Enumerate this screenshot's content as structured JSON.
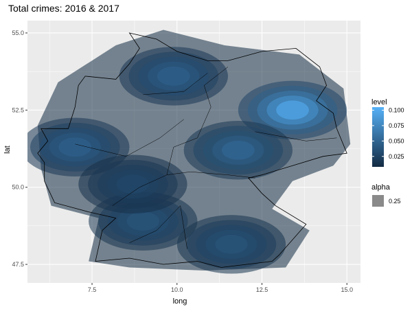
{
  "chart_data": {
    "type": "density-contour-map",
    "title": "Total crimes: 2016 & 2017",
    "xlabel": "long",
    "ylabel": "lat",
    "xlim": [
      5.6,
      15.4
    ],
    "ylim": [
      46.9,
      55.4
    ],
    "x_ticks": [
      7.5,
      10.0,
      12.5,
      15.0
    ],
    "x_tick_labels": [
      "7.5",
      "10.0",
      "12.5",
      "15.0"
    ],
    "y_ticks": [
      47.5,
      50.0,
      52.5,
      55.0
    ],
    "y_tick_labels": [
      "47.5",
      "50.0",
      "52.5",
      "55.0"
    ],
    "grid": true,
    "panel_color": "#ebebeb",
    "legend_placement": "right",
    "legend_level": {
      "title": "level",
      "breaks": [
        0.025,
        0.05,
        0.075,
        0.1
      ],
      "labels": [
        "0.025",
        "0.050",
        "0.075",
        "0.100"
      ],
      "range": [
        0.008,
        0.105
      ],
      "color_low": "#132b43",
      "color_high": "#56b1f7"
    },
    "legend_alpha": {
      "title": "alpha",
      "label": "0.25",
      "value": 0.25,
      "key_color": "#8a8a8a"
    },
    "hotspots": [
      {
        "long": 13.4,
        "lat": 52.5,
        "level": 0.105
      },
      {
        "long": 11.8,
        "lat": 51.2,
        "level": 0.055
      },
      {
        "long": 7.0,
        "lat": 51.3,
        "level": 0.05
      },
      {
        "long": 9.9,
        "lat": 53.6,
        "level": 0.05
      },
      {
        "long": 9.0,
        "lat": 48.9,
        "level": 0.04
      },
      {
        "long": 11.6,
        "lat": 48.15,
        "level": 0.04
      },
      {
        "long": 8.7,
        "lat": 50.1,
        "level": 0.03
      }
    ]
  }
}
